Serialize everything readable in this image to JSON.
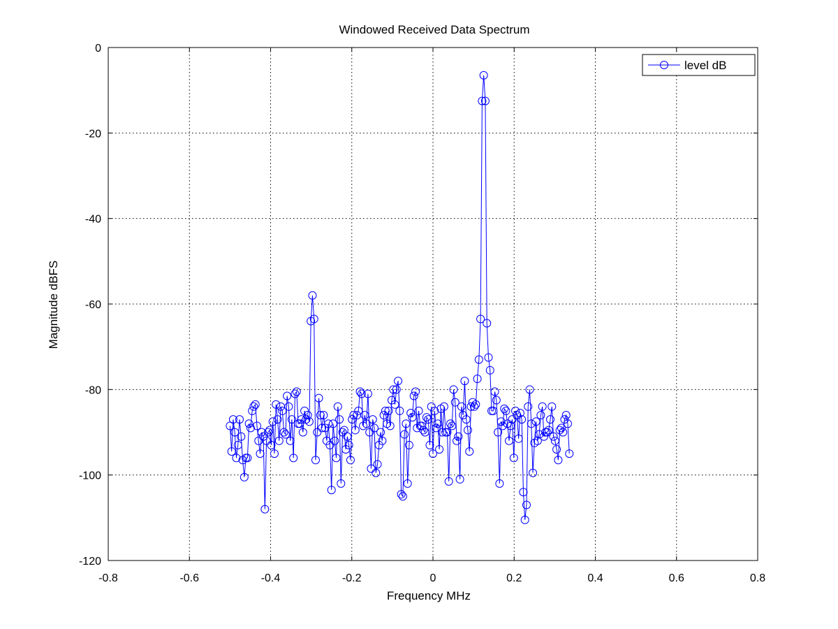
{
  "chart_data": {
    "type": "line",
    "title": "Windowed Received Data Spectrum",
    "xlabel": "Frequency MHz",
    "ylabel": "Magnitude dBFS",
    "xlim": [
      -0.8,
      0.8
    ],
    "ylim": [
      -120,
      0
    ],
    "xticks": [
      -0.8,
      -0.6,
      -0.4,
      -0.2,
      0,
      0.2,
      0.4,
      0.6,
      0.8
    ],
    "xtick_labels": [
      "-0.8",
      "-0.6",
      "-0.4",
      "-0.2",
      "0",
      "0.2",
      "0.4",
      "0.6",
      "0.8"
    ],
    "yticks": [
      0,
      -20,
      -40,
      -60,
      -80,
      -100,
      -120
    ],
    "ytick_labels": [
      "0",
      "-20",
      "-40",
      "-60",
      "-80",
      "-100",
      "-120"
    ],
    "grid": true,
    "legend_position": "top-right",
    "series": [
      {
        "name": "level dB",
        "color": "#0000ff",
        "marker": "circle",
        "x_start": -0.5,
        "x_step": 0.00390625,
        "values": [
          -88.5,
          -94.5,
          -87,
          -90,
          -96,
          -93,
          -87,
          -91,
          -96.5,
          -100.5,
          -96,
          -96,
          -88,
          -89,
          -85,
          -84,
          -83.5,
          -88.5,
          -92,
          -95,
          -90,
          -91,
          -108,
          -92,
          -90,
          -89.5,
          -93,
          -87.5,
          -95,
          -83.5,
          -87,
          -92,
          -84,
          -85,
          -90,
          -90.5,
          -81.5,
          -84,
          -92,
          -87,
          -96,
          -81,
          -80.5,
          -88,
          -88,
          -87,
          -90,
          -85,
          -87,
          -86,
          -87.5,
          -64,
          -58,
          -63.5,
          -96.5,
          -90,
          -82,
          -86,
          -89,
          -86,
          -89,
          -92,
          -88,
          -93,
          -103.5,
          -88,
          -92,
          -96,
          -84,
          -87,
          -102,
          -90,
          -89.5,
          -94,
          -91,
          -93,
          -96.5,
          -87,
          -86,
          -89.5,
          -86,
          -85,
          -80.5,
          -81,
          -88.5,
          -86,
          -88,
          -81,
          -90,
          -98.5,
          -87,
          -89,
          -99.5,
          -97.5,
          -93,
          -90,
          -92,
          -86,
          -85,
          -88,
          -85,
          -88.5,
          -82.5,
          -80,
          -83.5,
          -80,
          -78,
          -85,
          -104.5,
          -105,
          -90.5,
          -88,
          -102,
          -93,
          -85.5,
          -86.5,
          -81.5,
          -80.5,
          -89,
          -85,
          -88.5,
          -88.5,
          -89.5,
          -90,
          -86.5,
          -87,
          -93,
          -84,
          -95,
          -85,
          -89,
          -88,
          -94,
          -84.5,
          -90,
          -84,
          -90,
          -90,
          -101.5,
          -88,
          -88.5,
          -80,
          -83,
          -92,
          -91,
          -101,
          -84,
          -86,
          -78,
          -87,
          -89.5,
          -94.5,
          -84,
          -83,
          -84,
          -83.5,
          -77.5,
          -73,
          -63.5,
          -12.5,
          -6.5,
          -12.5,
          -64.5,
          -72.5,
          -75.5,
          -85,
          -85,
          -80.5,
          -82.5,
          -90,
          -102,
          -87.5,
          -88.5,
          -84.5,
          -85,
          -88,
          -92,
          -88.5,
          -87,
          -96,
          -85,
          -86,
          -91.5,
          -85.5,
          -87,
          -104,
          -110.5,
          -107,
          -84,
          -80,
          -88,
          -99.5,
          -92.5,
          -87.5,
          -92,
          -90.5,
          -86,
          -84,
          -91,
          -90,
          -90,
          -89.5,
          -87,
          -84,
          -91,
          -92,
          -94,
          -96.5,
          -89.5,
          -89,
          -90,
          -87,
          -86,
          -88,
          -95
        ]
      }
    ]
  }
}
